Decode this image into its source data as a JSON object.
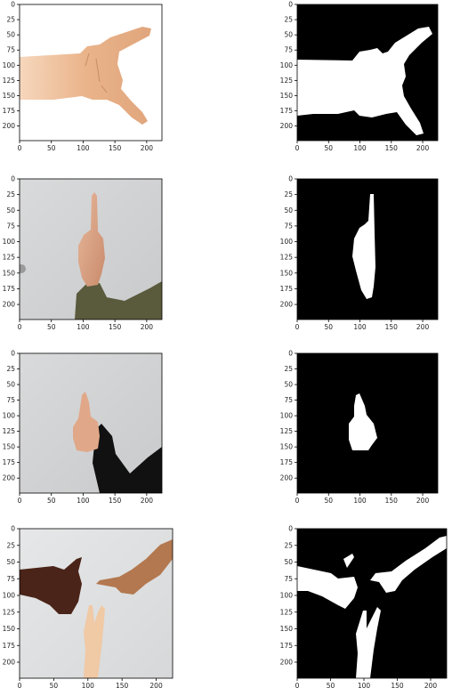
{
  "figure": {
    "background": "#ffffff",
    "mask_foreground": "#ffffff",
    "mask_background": "#000000"
  },
  "chart_data": [
    {
      "type": "image",
      "row": 1,
      "side": "photo",
      "content": "hand-photo-rock-sign",
      "xticks": [
        "0",
        "50",
        "100",
        "150",
        "200"
      ],
      "yticks": [
        "0",
        "25",
        "50",
        "75",
        "100",
        "125",
        "150",
        "175",
        "200"
      ],
      "xlim": [
        0,
        224
      ],
      "ylim": [
        224,
        0
      ]
    },
    {
      "type": "heatmap",
      "row": 1,
      "side": "mask",
      "content": "binary-mask-rock-sign",
      "xticks": [
        "0",
        "50",
        "100",
        "150",
        "200"
      ],
      "yticks": [
        "0",
        "25",
        "50",
        "75",
        "100",
        "125",
        "150",
        "175",
        "200"
      ],
      "xlim": [
        0,
        224
      ],
      "ylim": [
        224,
        0
      ]
    },
    {
      "type": "image",
      "row": 2,
      "side": "photo",
      "content": "hand-photo-index-up",
      "xticks": [
        "0",
        "50",
        "100",
        "150",
        "200"
      ],
      "yticks": [
        "0",
        "25",
        "50",
        "75",
        "100",
        "125",
        "150",
        "175",
        "200"
      ],
      "xlim": [
        0,
        224
      ],
      "ylim": [
        224,
        0
      ]
    },
    {
      "type": "heatmap",
      "row": 2,
      "side": "mask",
      "content": "binary-mask-index-up",
      "xticks": [
        "0",
        "50",
        "100",
        "150",
        "200"
      ],
      "yticks": [
        "0",
        "25",
        "50",
        "75",
        "100",
        "125",
        "150",
        "175",
        "200"
      ],
      "xlim": [
        0,
        224
      ],
      "ylim": [
        224,
        0
      ]
    },
    {
      "type": "image",
      "row": 3,
      "side": "photo",
      "content": "hand-photo-thumbs-up",
      "xticks": [
        "0",
        "50",
        "100",
        "150",
        "200"
      ],
      "yticks": [
        "0",
        "25",
        "50",
        "75",
        "100",
        "125",
        "150",
        "175",
        "200"
      ],
      "xlim": [
        0,
        224
      ],
      "ylim": [
        224,
        0
      ]
    },
    {
      "type": "heatmap",
      "row": 3,
      "side": "mask",
      "content": "binary-mask-thumbs-up",
      "xticks": [
        "0",
        "50",
        "100",
        "150",
        "200"
      ],
      "yticks": [
        "0",
        "25",
        "50",
        "75",
        "100",
        "125",
        "150",
        "175",
        "200"
      ],
      "xlim": [
        0,
        224
      ],
      "ylim": [
        224,
        0
      ]
    },
    {
      "type": "image",
      "row": 4,
      "side": "photo",
      "content": "hand-photo-three-hands",
      "xticks": [
        "0",
        "50",
        "100",
        "150",
        "200"
      ],
      "yticks": [
        "0",
        "25",
        "50",
        "75",
        "100",
        "125",
        "150",
        "175",
        "200"
      ],
      "xlim": [
        0,
        224
      ],
      "ylim": [
        224,
        0
      ]
    },
    {
      "type": "heatmap",
      "row": 4,
      "side": "mask",
      "content": "binary-mask-three-hands",
      "xticks": [
        "0",
        "50",
        "100",
        "150",
        "200"
      ],
      "yticks": [
        "0",
        "25",
        "50",
        "75",
        "100",
        "125",
        "150",
        "175",
        "200"
      ],
      "xlim": [
        0,
        224
      ],
      "ylim": [
        224,
        0
      ]
    }
  ]
}
